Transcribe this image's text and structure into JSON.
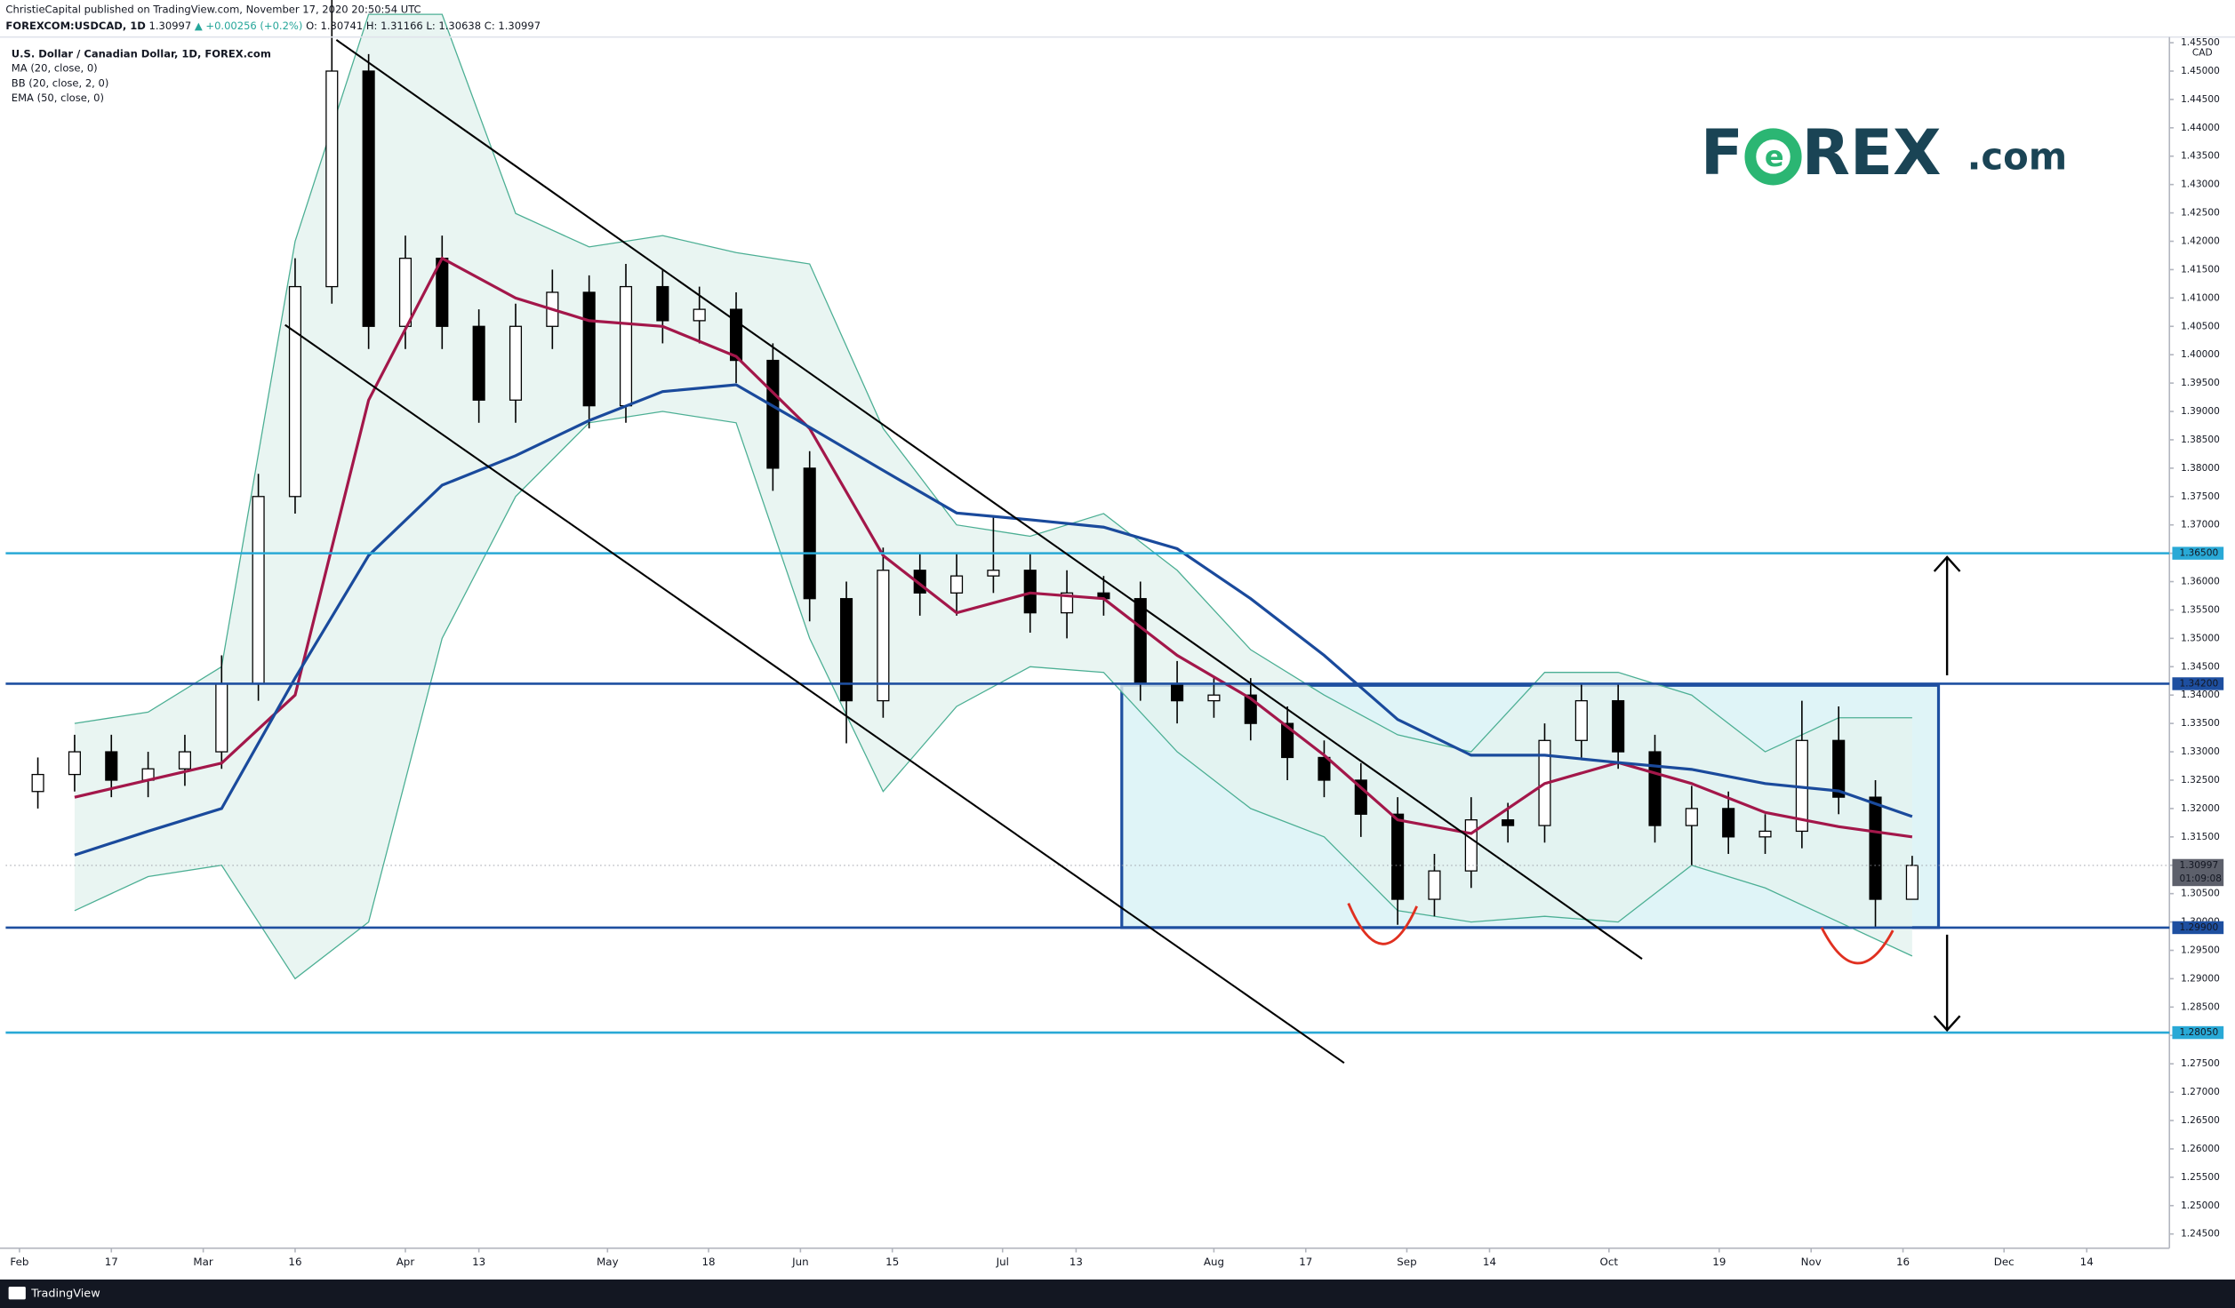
{
  "header": {
    "author_line": "ChristieCapital published on TradingView.com, November 17, 2020 20:50:54 UTC",
    "symbol": "FOREXCOM:USDCAD, 1D",
    "last": "1.30997",
    "change": "▲ +0.00256 (+0.2%)",
    "open": "O: 1.30741",
    "high": "H: 1.31166",
    "low": "L: 1.30638",
    "close": "C: 1.30997"
  },
  "logo": {
    "part1": "F",
    "part2": "REX",
    "part3": ".com"
  },
  "footer": {
    "brand": "TradingView"
  },
  "chart_data": {
    "type": "candlestick",
    "title": "U.S. Dollar / Canadian Dollar, 1D, FOREX.com",
    "axis_unit": "CAD",
    "xlim": [
      -1.5,
      234
    ],
    "ylim": [
      1.2425,
      1.456
    ],
    "grid": false,
    "up_color": "#ffffff",
    "down_color": "#000000",
    "xticks": [
      {
        "value": 0,
        "label": "Feb"
      },
      {
        "value": 10,
        "label": "17"
      },
      {
        "value": 20,
        "label": "Mar"
      },
      {
        "value": 30,
        "label": "16"
      },
      {
        "value": 42,
        "label": "Apr"
      },
      {
        "value": 50,
        "label": "13"
      },
      {
        "value": 64,
        "label": "May"
      },
      {
        "value": 75,
        "label": "18"
      },
      {
        "value": 85,
        "label": "Jun"
      },
      {
        "value": 95,
        "label": "15"
      },
      {
        "value": 107,
        "label": "Jul"
      },
      {
        "value": 115,
        "label": "13"
      },
      {
        "value": 130,
        "label": "Aug"
      },
      {
        "value": 140,
        "label": "17"
      },
      {
        "value": 151,
        "label": "Sep"
      },
      {
        "value": 160,
        "label": "14"
      },
      {
        "value": 173,
        "label": "Oct"
      },
      {
        "value": 185,
        "label": "19"
      },
      {
        "value": 195,
        "label": "Nov"
      },
      {
        "value": 205,
        "label": "16"
      },
      {
        "value": 216,
        "label": "Dec"
      },
      {
        "value": 225,
        "label": "14"
      }
    ],
    "yticks": [
      {
        "value": 1.245,
        "label": "1.24500"
      },
      {
        "value": 1.25,
        "label": "1.25000"
      },
      {
        "value": 1.255,
        "label": "1.25500"
      },
      {
        "value": 1.26,
        "label": "1.26000"
      },
      {
        "value": 1.265,
        "label": "1.26500"
      },
      {
        "value": 1.27,
        "label": "1.27000"
      },
      {
        "value": 1.275,
        "label": "1.27500"
      },
      {
        "value": 1.28,
        "label": "1.28000"
      },
      {
        "value": 1.285,
        "label": "1.28500"
      },
      {
        "value": 1.29,
        "label": "1.29000"
      },
      {
        "value": 1.295,
        "label": "1.29500"
      },
      {
        "value": 1.3,
        "label": "1.30000"
      },
      {
        "value": 1.305,
        "label": "1.30500"
      },
      {
        "value": 1.31,
        "label": "1.31000"
      },
      {
        "value": 1.315,
        "label": "1.31500"
      },
      {
        "value": 1.32,
        "label": "1.32000"
      },
      {
        "value": 1.325,
        "label": "1.32500"
      },
      {
        "value": 1.33,
        "label": "1.33000"
      },
      {
        "value": 1.335,
        "label": "1.33500"
      },
      {
        "value": 1.34,
        "label": "1.34000"
      },
      {
        "value": 1.345,
        "label": "1.34500"
      },
      {
        "value": 1.35,
        "label": "1.35000"
      },
      {
        "value": 1.355,
        "label": "1.35500"
      },
      {
        "value": 1.36,
        "label": "1.36000"
      },
      {
        "value": 1.365,
        "label": "1.36500"
      },
      {
        "value": 1.37,
        "label": "1.37000"
      },
      {
        "value": 1.375,
        "label": "1.37500"
      },
      {
        "value": 1.38,
        "label": "1.38000"
      },
      {
        "value": 1.385,
        "label": "1.38500"
      },
      {
        "value": 1.39,
        "label": "1.39000"
      },
      {
        "value": 1.395,
        "label": "1.39500"
      },
      {
        "value": 1.4,
        "label": "1.40000"
      },
      {
        "value": 1.405,
        "label": "1.40500"
      },
      {
        "value": 1.41,
        "label": "1.41000"
      },
      {
        "value": 1.415,
        "label": "1.41500"
      },
      {
        "value": 1.42,
        "label": "1.42000"
      },
      {
        "value": 1.425,
        "label": "1.42500"
      },
      {
        "value": 1.43,
        "label": "1.43000"
      },
      {
        "value": 1.435,
        "label": "1.43500"
      },
      {
        "value": 1.44,
        "label": "1.44000"
      },
      {
        "value": 1.445,
        "label": "1.44500"
      },
      {
        "value": 1.45,
        "label": "1.45000"
      },
      {
        "value": 1.455,
        "label": "1.45500"
      }
    ],
    "candles": {
      "x": [
        2,
        6,
        10,
        14,
        18,
        22,
        26,
        30,
        34,
        38,
        42,
        46,
        50,
        54,
        58,
        62,
        66,
        70,
        74,
        78,
        82,
        86,
        90,
        94,
        98,
        102,
        106,
        110,
        114,
        118,
        122,
        126,
        130,
        134,
        138,
        142,
        146,
        150,
        154,
        158,
        162,
        166,
        170,
        174,
        178,
        182,
        186,
        190,
        194,
        198,
        202,
        206
      ],
      "open": [
        1.323,
        1.326,
        1.33,
        1.325,
        1.327,
        1.33,
        1.342,
        1.375,
        1.412,
        1.45,
        1.405,
        1.417,
        1.405,
        1.392,
        1.405,
        1.411,
        1.391,
        1.412,
        1.406,
        1.408,
        1.399,
        1.38,
        1.357,
        1.339,
        1.362,
        1.358,
        1.361,
        1.362,
        1.3545,
        1.358,
        1.357,
        1.342,
        1.339,
        1.34,
        1.335,
        1.329,
        1.325,
        1.319,
        1.304,
        1.309,
        1.318,
        1.317,
        1.332,
        1.339,
        1.33,
        1.317,
        1.32,
        1.315,
        1.316,
        1.332,
        1.322,
        1.304
      ],
      "high": [
        1.329,
        1.333,
        1.333,
        1.33,
        1.333,
        1.347,
        1.379,
        1.417,
        1.4667,
        1.453,
        1.421,
        1.421,
        1.408,
        1.409,
        1.415,
        1.414,
        1.416,
        1.415,
        1.412,
        1.411,
        1.402,
        1.383,
        1.36,
        1.366,
        1.365,
        1.365,
        1.3715,
        1.365,
        1.362,
        1.361,
        1.36,
        1.346,
        1.343,
        1.343,
        1.338,
        1.332,
        1.328,
        1.322,
        1.312,
        1.322,
        1.321,
        1.335,
        1.342,
        1.342,
        1.333,
        1.324,
        1.323,
        1.319,
        1.339,
        1.338,
        1.325,
        1.31166
      ],
      "low": [
        1.32,
        1.323,
        1.322,
        1.322,
        1.324,
        1.327,
        1.339,
        1.372,
        1.409,
        1.401,
        1.401,
        1.401,
        1.388,
        1.388,
        1.401,
        1.387,
        1.388,
        1.402,
        1.402,
        1.395,
        1.376,
        1.353,
        1.3315,
        1.336,
        1.354,
        1.354,
        1.358,
        1.351,
        1.35,
        1.354,
        1.339,
        1.335,
        1.336,
        1.332,
        1.325,
        1.322,
        1.315,
        1.2995,
        1.301,
        1.306,
        1.314,
        1.314,
        1.329,
        1.327,
        1.314,
        1.31,
        1.312,
        1.312,
        1.313,
        1.319,
        1.299,
        1.30638
      ],
      "close": [
        1.326,
        1.33,
        1.325,
        1.327,
        1.33,
        1.342,
        1.375,
        1.412,
        1.45,
        1.405,
        1.417,
        1.405,
        1.392,
        1.405,
        1.411,
        1.391,
        1.412,
        1.406,
        1.408,
        1.399,
        1.38,
        1.357,
        1.339,
        1.362,
        1.358,
        1.361,
        1.362,
        1.3545,
        1.358,
        1.357,
        1.342,
        1.339,
        1.34,
        1.335,
        1.329,
        1.325,
        1.319,
        1.304,
        1.309,
        1.318,
        1.317,
        1.332,
        1.339,
        1.33,
        1.317,
        1.32,
        1.315,
        1.316,
        1.332,
        1.322,
        1.304,
        1.30997
      ]
    },
    "series": [
      {
        "name": "MA (20, close, 0)",
        "color": "#a3174a",
        "x": [
          6,
          14,
          22,
          30,
          38,
          46,
          54,
          62,
          70,
          78,
          86,
          94,
          102,
          110,
          118,
          126,
          134,
          142,
          150,
          158,
          166,
          174,
          182,
          190,
          198,
          206
        ],
        "values": [
          1.322,
          1.325,
          1.328,
          1.34,
          1.392,
          1.417,
          1.41,
          1.406,
          1.405,
          1.3997,
          1.387,
          1.3646,
          1.3545,
          1.358,
          1.357,
          1.347,
          1.3394,
          1.3294,
          1.318,
          1.3156,
          1.3244,
          1.3281,
          1.3244,
          1.3193,
          1.3168,
          1.315
        ]
      },
      {
        "name": "BB (20, close, 2, 0)",
        "color": "#4caf94",
        "fill": "#e4f3ef",
        "x": [
          6,
          14,
          22,
          30,
          38,
          46,
          54,
          62,
          70,
          78,
          86,
          94,
          102,
          110,
          118,
          126,
          134,
          142,
          150,
          158,
          166,
          174,
          182,
          190,
          198,
          206
        ],
        "upper": [
          1.335,
          1.337,
          1.345,
          1.42,
          1.46,
          1.46,
          1.4249,
          1.419,
          1.421,
          1.418,
          1.416,
          1.387,
          1.37,
          1.368,
          1.372,
          1.362,
          1.348,
          1.34,
          1.333,
          1.33,
          1.344,
          1.344,
          1.34,
          1.33,
          1.336,
          1.336
        ],
        "lower": [
          1.302,
          1.308,
          1.31,
          1.29,
          1.3,
          1.35,
          1.375,
          1.388,
          1.39,
          1.388,
          1.35,
          1.323,
          1.338,
          1.345,
          1.344,
          1.33,
          1.32,
          1.315,
          1.302,
          1.3,
          1.301,
          1.3,
          1.31,
          1.306,
          1.3,
          1.294
        ]
      },
      {
        "name": "EMA (50, close, 0)",
        "color": "#1a4a9c",
        "x": [
          6,
          14,
          22,
          30,
          38,
          46,
          54,
          62,
          70,
          78,
          86,
          94,
          102,
          110,
          118,
          126,
          134,
          142,
          150,
          158,
          166,
          174,
          182,
          190,
          198,
          206
        ],
        "values": [
          1.3118,
          1.316,
          1.32,
          1.343,
          1.3646,
          1.377,
          1.3822,
          1.3884,
          1.3935,
          1.3947,
          1.3872,
          1.3796,
          1.3721,
          1.3709,
          1.3696,
          1.3658,
          1.357,
          1.347,
          1.3357,
          1.3294,
          1.3294,
          1.3281,
          1.3269,
          1.3244,
          1.3231,
          1.3186
        ]
      }
    ],
    "levels": [
      {
        "value": 1.365,
        "label": "1.36500",
        "color": "#29a9d6"
      },
      {
        "value": 1.342,
        "label": "1.34200",
        "color": "#1e4fa0"
      },
      {
        "value": 1.299,
        "label": "1.29900",
        "color": "#1e4fa0"
      },
      {
        "value": 1.2805,
        "label": "1.28050",
        "color": "#29a9d6"
      }
    ],
    "last_price": {
      "value": 1.30997,
      "label": "1.30997",
      "countdown": "01:09:08",
      "color": "#5d606b"
    }
  }
}
